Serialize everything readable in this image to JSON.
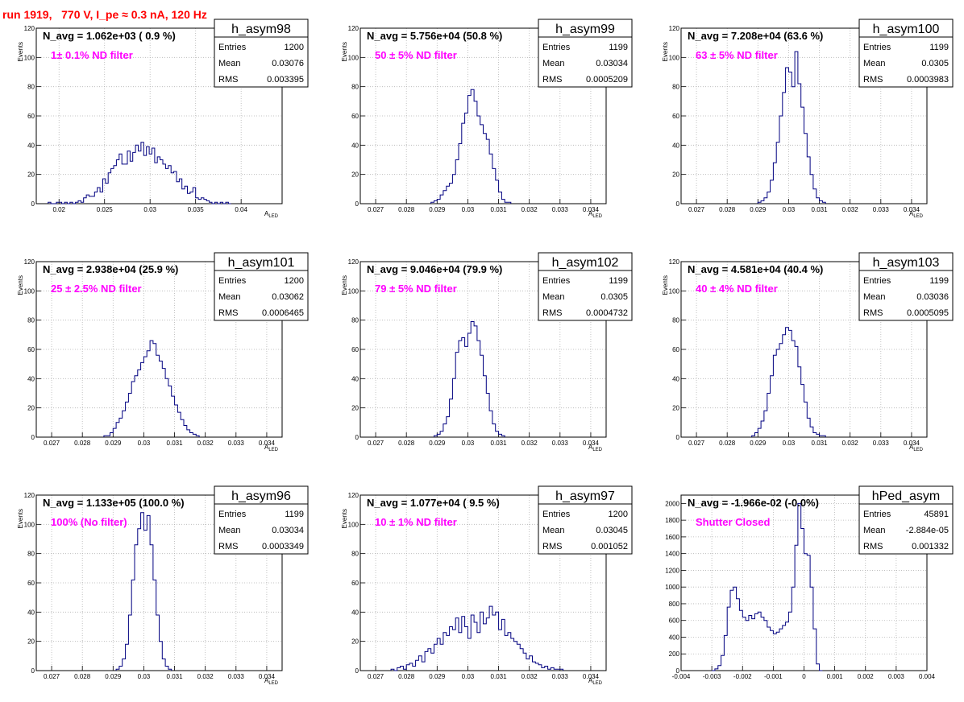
{
  "run_title": "run 1919,   770 V, I_pe ≈ 0.3 nA, 120 Hz",
  "colors": {
    "histogram": "#000080",
    "label": "#ff00ff",
    "title": "#ff0000",
    "grid": "#b4b4b4"
  },
  "chart_data": [
    {
      "type": "bar",
      "histogram_name": "h_asym98",
      "navg_label": "N_avg = 1.062e+03 ( 0.9 %)",
      "filter_label": "1± 0.1% ND filter",
      "stats": {
        "entries": "1200",
        "mean": "0.03076",
        "rms": "0.003395"
      },
      "xlabel": "A_LED",
      "ylabel": "Events",
      "xlim": [
        0.0175,
        0.0445
      ],
      "ylim": [
        0,
        120
      ],
      "xticks": [
        0.02,
        0.025,
        0.03,
        0.035,
        0.04
      ],
      "xtick_labels": [
        "0.02",
        "0.025",
        "0.03",
        "0.035",
        "0.04"
      ],
      "yticks": [
        0,
        20,
        40,
        60,
        80,
        100,
        120
      ],
      "grid": true,
      "bins": {
        "start": 0.0188,
        "width": 0.0003,
        "values": [
          1,
          0,
          0,
          1,
          1,
          0,
          1,
          0,
          1,
          0,
          1,
          2,
          1,
          4,
          6,
          5,
          5,
          8,
          11,
          8,
          17,
          14,
          21,
          24,
          26,
          30,
          34,
          27,
          27,
          36,
          29,
          35,
          40,
          36,
          42,
          33,
          39,
          34,
          38,
          28,
          32,
          30,
          27,
          24,
          26,
          21,
          22,
          15,
          17,
          10,
          12,
          7,
          8,
          11,
          4,
          3,
          4,
          3,
          2,
          1,
          0,
          1,
          0,
          1,
          0,
          1,
          0
        ]
      }
    },
    {
      "type": "bar",
      "histogram_name": "h_asym99",
      "navg_label": "N_avg = 5.756e+04 (50.8 %)",
      "filter_label": "50 ± 5% ND filter",
      "stats": {
        "entries": "1199",
        "mean": "0.03034",
        "rms": "0.0005209"
      },
      "xlabel": "A_LED",
      "ylabel": "Events",
      "xlim": [
        0.0265,
        0.0345
      ],
      "ylim": [
        0,
        120
      ],
      "xticks": [
        0.027,
        0.028,
        0.029,
        0.03,
        0.031,
        0.032,
        0.033,
        0.034
      ],
      "xtick_labels": [
        "0.027",
        "0.028",
        "0.029",
        "0.03",
        "0.031",
        "0.032",
        "0.033",
        "0.034"
      ],
      "yticks": [
        0,
        20,
        40,
        60,
        80,
        100,
        120
      ],
      "grid": true,
      "bins": {
        "start": 0.0288,
        "width": 0.0001,
        "values": [
          1,
          2,
          3,
          6,
          9,
          12,
          14,
          20,
          30,
          41,
          55,
          62,
          74,
          78,
          70,
          60,
          54,
          48,
          44,
          34,
          24,
          16,
          8,
          3,
          1,
          1
        ]
      }
    },
    {
      "type": "bar",
      "histogram_name": "h_asym100",
      "navg_label": "N_avg = 7.208e+04 (63.6 %)",
      "filter_label": "63 ± 5% ND filter",
      "stats": {
        "entries": "1199",
        "mean": "0.0305",
        "rms": "0.0003983"
      },
      "xlabel": "A_LED",
      "ylabel": "Events",
      "xlim": [
        0.0265,
        0.0345
      ],
      "ylim": [
        0,
        120
      ],
      "xticks": [
        0.027,
        0.028,
        0.029,
        0.03,
        0.031,
        0.032,
        0.033,
        0.034
      ],
      "xtick_labels": [
        "0.027",
        "0.028",
        "0.029",
        "0.03",
        "0.031",
        "0.032",
        "0.033",
        "0.034"
      ],
      "yticks": [
        0,
        20,
        40,
        60,
        80,
        100,
        120
      ],
      "grid": true,
      "bins": {
        "start": 0.029,
        "width": 0.0001,
        "values": [
          1,
          2,
          4,
          8,
          16,
          28,
          42,
          60,
          76,
          93,
          90,
          80,
          104,
          82,
          66,
          48,
          32,
          20,
          10,
          4,
          2,
          1
        ]
      }
    },
    {
      "type": "bar",
      "histogram_name": "h_asym101",
      "navg_label": "N_avg = 2.938e+04 (25.9 %)",
      "filter_label": "25 ± 2.5% ND filter",
      "stats": {
        "entries": "1200",
        "mean": "0.03062",
        "rms": "0.0006465"
      },
      "xlabel": "A_LED",
      "ylabel": "Events",
      "xlim": [
        0.0265,
        0.0345
      ],
      "ylim": [
        0,
        120
      ],
      "xticks": [
        0.027,
        0.028,
        0.029,
        0.03,
        0.031,
        0.032,
        0.033,
        0.034
      ],
      "xtick_labels": [
        "0.027",
        "0.028",
        "0.029",
        "0.03",
        "0.031",
        "0.032",
        "0.033",
        "0.034"
      ],
      "yticks": [
        0,
        20,
        40,
        60,
        80,
        100,
        120
      ],
      "grid": true,
      "bins": {
        "start": 0.0287,
        "width": 0.0001,
        "values": [
          1,
          1,
          3,
          6,
          10,
          13,
          18,
          24,
          30,
          38,
          42,
          46,
          51,
          55,
          59,
          66,
          64,
          56,
          52,
          47,
          40,
          35,
          28,
          22,
          17,
          12,
          8,
          5,
          3,
          2,
          1
        ]
      }
    },
    {
      "type": "bar",
      "histogram_name": "h_asym102",
      "navg_label": "N_avg = 9.046e+04 (79.9 %)",
      "filter_label": "79 ± 5% ND filter",
      "stats": {
        "entries": "1199",
        "mean": "0.0305",
        "rms": "0.0004732"
      },
      "xlabel": "A_LED",
      "ylabel": "Events",
      "xlim": [
        0.0265,
        0.0345
      ],
      "ylim": [
        0,
        120
      ],
      "xticks": [
        0.027,
        0.028,
        0.029,
        0.03,
        0.031,
        0.032,
        0.033,
        0.034
      ],
      "xtick_labels": [
        "0.027",
        "0.028",
        "0.029",
        "0.03",
        "0.031",
        "0.032",
        "0.033",
        "0.034"
      ],
      "yticks": [
        0,
        20,
        40,
        60,
        80,
        100,
        120
      ],
      "grid": true,
      "bins": {
        "start": 0.0289,
        "width": 0.0001,
        "values": [
          1,
          2,
          4,
          9,
          14,
          26,
          40,
          58,
          66,
          68,
          62,
          71,
          79,
          76,
          66,
          56,
          42,
          30,
          18,
          9,
          4,
          2,
          1
        ]
      }
    },
    {
      "type": "bar",
      "histogram_name": "h_asym103",
      "navg_label": "N_avg = 4.581e+04 (40.4 %)",
      "filter_label": "40 ± 4% ND filter",
      "stats": {
        "entries": "1199",
        "mean": "0.03036",
        "rms": "0.0005095"
      },
      "xlabel": "A_LED",
      "ylabel": "Events",
      "xlim": [
        0.0265,
        0.0345
      ],
      "ylim": [
        0,
        120
      ],
      "xticks": [
        0.027,
        0.028,
        0.029,
        0.03,
        0.031,
        0.032,
        0.033,
        0.034
      ],
      "xtick_labels": [
        "0.027",
        "0.028",
        "0.029",
        "0.03",
        "0.031",
        "0.032",
        "0.033",
        "0.034"
      ],
      "yticks": [
        0,
        20,
        40,
        60,
        80,
        100,
        120
      ],
      "grid": true,
      "bins": {
        "start": 0.0288,
        "width": 0.0001,
        "values": [
          1,
          3,
          6,
          11,
          18,
          30,
          42,
          56,
          60,
          64,
          70,
          75,
          73,
          66,
          62,
          48,
          36,
          24,
          13,
          7,
          3,
          2,
          1,
          1
        ]
      }
    },
    {
      "type": "bar",
      "histogram_name": "h_asym96",
      "navg_label": "N_avg = 1.133e+05 (100.0 %)",
      "filter_label": "100% (No filter)",
      "stats": {
        "entries": "1199",
        "mean": "0.03034",
        "rms": "0.0003349"
      },
      "xlabel": "A_LED",
      "ylabel": "Events",
      "xlim": [
        0.0265,
        0.0345
      ],
      "ylim": [
        0,
        120
      ],
      "xticks": [
        0.027,
        0.028,
        0.029,
        0.03,
        0.031,
        0.032,
        0.033,
        0.034
      ],
      "xtick_labels": [
        "0.027",
        "0.028",
        "0.029",
        "0.03",
        "0.031",
        "0.032",
        "0.033",
        "0.034"
      ],
      "yticks": [
        0,
        20,
        40,
        60,
        80,
        100,
        120
      ],
      "grid": true,
      "bins": {
        "start": 0.0291,
        "width": 0.0001,
        "values": [
          1,
          3,
          8,
          18,
          38,
          62,
          86,
          97,
          108,
          96,
          106,
          86,
          62,
          38,
          20,
          8,
          3,
          1
        ]
      }
    },
    {
      "type": "bar",
      "histogram_name": "h_asym97",
      "navg_label": "N_avg = 1.077e+04 ( 9.5 %)",
      "filter_label": "10 ± 1% ND filter",
      "stats": {
        "entries": "1200",
        "mean": "0.03045",
        "rms": "0.001052"
      },
      "xlabel": "A_LED",
      "ylabel": "Events",
      "xlim": [
        0.0265,
        0.0345
      ],
      "ylim": [
        0,
        120
      ],
      "xticks": [
        0.027,
        0.028,
        0.029,
        0.03,
        0.031,
        0.032,
        0.033,
        0.034
      ],
      "xtick_labels": [
        "0.027",
        "0.028",
        "0.029",
        "0.03",
        "0.031",
        "0.032",
        "0.033",
        "0.034"
      ],
      "yticks": [
        0,
        20,
        40,
        60,
        80,
        100,
        120
      ],
      "grid": true,
      "bins": {
        "start": 0.0275,
        "width": 0.0001,
        "values": [
          1,
          0,
          2,
          3,
          1,
          4,
          5,
          3,
          7,
          10,
          6,
          13,
          15,
          12,
          18,
          22,
          18,
          26,
          24,
          30,
          28,
          36,
          26,
          37,
          30,
          22,
          38,
          33,
          26,
          40,
          32,
          36,
          44,
          38,
          40,
          28,
          35,
          24,
          26,
          22,
          20,
          18,
          15,
          12,
          8,
          10,
          6,
          5,
          4,
          2,
          3,
          1,
          2,
          1,
          1,
          1
        ]
      }
    },
    {
      "type": "bar",
      "histogram_name": "hPed_asym",
      "navg_label": "N_avg = -1.966e-02 (-0.0%)",
      "filter_label": "Shutter Closed",
      "stats": {
        "entries": "45891",
        "mean": "-2.884e-05",
        "rms": "0.001332"
      },
      "xlabel": "",
      "ylabel": "",
      "xlim": [
        -0.004,
        0.004
      ],
      "ylim": [
        0,
        2100
      ],
      "xticks": [
        -0.004,
        -0.003,
        -0.002,
        -0.001,
        0,
        0.001,
        0.002,
        0.003,
        0.004
      ],
      "xtick_labels": [
        "-0.004",
        "-0.003",
        "-0.002",
        "-0.001",
        "0",
        "0.001",
        "0.002",
        "0.003",
        "0.004"
      ],
      "yticks": [
        0,
        200,
        400,
        600,
        800,
        1000,
        1200,
        1400,
        1600,
        1800,
        2000
      ],
      "grid": true,
      "bins": {
        "start": -0.003,
        "width": 0.0001,
        "values": [
          0,
          20,
          60,
          180,
          420,
          760,
          960,
          1000,
          860,
          720,
          640,
          600,
          660,
          620,
          680,
          700,
          640,
          600,
          520,
          480,
          440,
          460,
          500,
          540,
          580,
          700,
          1000,
          1500,
          2000,
          1700,
          1400,
          1380,
          1000,
          500,
          80,
          0
        ]
      }
    }
  ]
}
